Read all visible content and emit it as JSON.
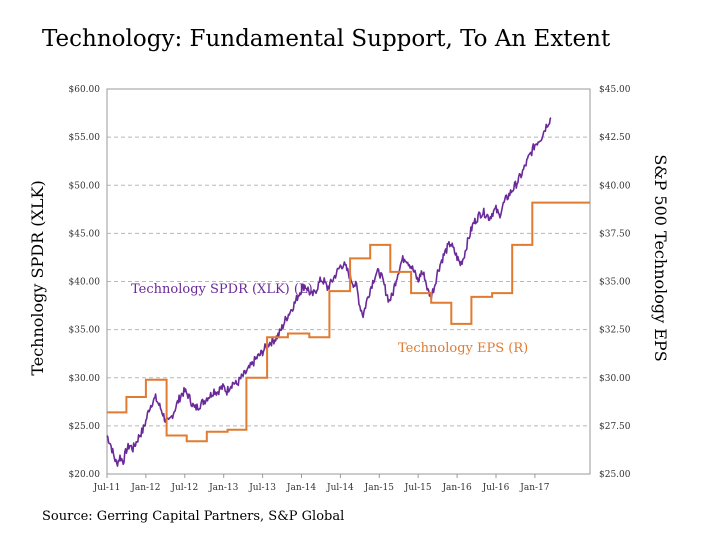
{
  "title": "Technology: Fundamental Support, To An Extent",
  "source": "Source: Gerring Capital Partners, S&P Global",
  "colors": {
    "xlk": "#6a2a9a",
    "eps": "#e07b30",
    "grid": "#b8b8b8"
  },
  "chart_data": {
    "type": "line",
    "title": "Technology: Fundamental Support, To An Extent",
    "ylabel_left": "Technology SPDR (XLK)",
    "ylabel_right": "S&P 500 Technology EPS",
    "x_ticks": [
      "Jul-11",
      "Jan-12",
      "Jul-12",
      "Jan-13",
      "Jul-13",
      "Jan-14",
      "Jul-14",
      "Jan-15",
      "Jul-15",
      "Jan-16",
      "Jul-16",
      "Jan-17"
    ],
    "x_range_months": [
      0,
      74.5
    ],
    "left_axis": {
      "min": 20,
      "max": 60,
      "step": 5,
      "tick_labels": [
        "$20.00",
        "$25.00",
        "$30.00",
        "$35.00",
        "$40.00",
        "$45.00",
        "$50.00",
        "$55.00",
        "$60.00"
      ]
    },
    "right_axis": {
      "min": 25,
      "max": 45,
      "step": 2.5,
      "tick_labels": [
        "$25.00",
        "$27.50",
        "$30.00",
        "$32.50",
        "$35.00",
        "$37.50",
        "$40.00",
        "$42.50",
        "$45.00"
      ]
    },
    "series": [
      {
        "name": "Technology SPDR (XLK) (L)",
        "axis": "left",
        "style": "line",
        "x_unit": "months since Jul-11",
        "points": [
          [
            0,
            24
          ],
          [
            0.5,
            23.2
          ],
          [
            1,
            22
          ],
          [
            1.5,
            21
          ],
          [
            2,
            21.8
          ],
          [
            2.5,
            21.3
          ],
          [
            3,
            22.5
          ],
          [
            3.5,
            23
          ],
          [
            4,
            22.6
          ],
          [
            4.5,
            23.3
          ],
          [
            5,
            24
          ],
          [
            5.5,
            24.5
          ],
          [
            6,
            25.5
          ],
          [
            6.5,
            26.8
          ],
          [
            7,
            27.5
          ],
          [
            7.5,
            27.9
          ],
          [
            8,
            27.2
          ],
          [
            8.5,
            26.5
          ],
          [
            9,
            25.6
          ],
          [
            9.5,
            25.3
          ],
          [
            10,
            26
          ],
          [
            10.5,
            26.8
          ],
          [
            11,
            27.6
          ],
          [
            11.5,
            28.3
          ],
          [
            12,
            28.6
          ],
          [
            12.5,
            28.2
          ],
          [
            13,
            27.5
          ],
          [
            13.5,
            26.8
          ],
          [
            14,
            27
          ],
          [
            14.5,
            27.3
          ],
          [
            15,
            27.6
          ],
          [
            15.5,
            28
          ],
          [
            16,
            28.2
          ],
          [
            16.5,
            28.7
          ],
          [
            17,
            28.5
          ],
          [
            17.5,
            28.9
          ],
          [
            18,
            29
          ],
          [
            18.5,
            28.6
          ],
          [
            19,
            29.2
          ],
          [
            19.5,
            29.5
          ],
          [
            20,
            29.3
          ],
          [
            20.5,
            29.8
          ],
          [
            21,
            30.2
          ],
          [
            21.5,
            30.6
          ],
          [
            22,
            31
          ],
          [
            22.5,
            31.5
          ],
          [
            23,
            32
          ],
          [
            23.5,
            32.3
          ],
          [
            24,
            32.7
          ],
          [
            24.5,
            33.2
          ],
          [
            25,
            33.6
          ],
          [
            25.5,
            33.8
          ],
          [
            26,
            34.1
          ],
          [
            26.5,
            34.5
          ],
          [
            27,
            35.2
          ],
          [
            27.5,
            36
          ],
          [
            28,
            36.6
          ],
          [
            28.5,
            37.2
          ],
          [
            29,
            37.8
          ],
          [
            29.5,
            38.6
          ],
          [
            30,
            39.2
          ],
          [
            30.5,
            39.6
          ],
          [
            31,
            39.2
          ],
          [
            31.5,
            38.5
          ],
          [
            32,
            38.8
          ],
          [
            32.5,
            39.5
          ],
          [
            33,
            40.2
          ],
          [
            33.5,
            40
          ],
          [
            34,
            39.3
          ],
          [
            34.5,
            39.8
          ],
          [
            35,
            40.4
          ],
          [
            35.5,
            41
          ],
          [
            36,
            41.6
          ],
          [
            36.5,
            41.8
          ],
          [
            37,
            41.2
          ],
          [
            37.5,
            40.5
          ],
          [
            38,
            39.8
          ],
          [
            38.5,
            39.5
          ],
          [
            39,
            37.5
          ],
          [
            39.5,
            36.5
          ],
          [
            40,
            37.8
          ],
          [
            40.5,
            39
          ],
          [
            41,
            40
          ],
          [
            41.5,
            40.8
          ],
          [
            42,
            41
          ],
          [
            42.5,
            40.2
          ],
          [
            43,
            39
          ],
          [
            43.5,
            38
          ],
          [
            44,
            38.5
          ],
          [
            44.5,
            40
          ],
          [
            45,
            41.2
          ],
          [
            45.5,
            42.2
          ],
          [
            46,
            42.5
          ],
          [
            46.5,
            42
          ],
          [
            47,
            41.5
          ],
          [
            47.5,
            40.8
          ],
          [
            48,
            40
          ],
          [
            48.5,
            41
          ],
          [
            49,
            40.5
          ],
          [
            49.5,
            39
          ],
          [
            50,
            38.5
          ],
          [
            50.5,
            39.5
          ],
          [
            51,
            41
          ],
          [
            51.5,
            42
          ],
          [
            52,
            42.8
          ],
          [
            52.5,
            43.5
          ],
          [
            53,
            44
          ],
          [
            53.5,
            43.2
          ],
          [
            54,
            42.5
          ],
          [
            54.5,
            41.8
          ],
          [
            55,
            42.5
          ],
          [
            55.5,
            43.8
          ],
          [
            56,
            45
          ],
          [
            56.5,
            46
          ],
          [
            57,
            46.5
          ],
          [
            57.5,
            47
          ],
          [
            58,
            47.2
          ],
          [
            58.5,
            47
          ],
          [
            59,
            46.6
          ],
          [
            59.5,
            47.2
          ],
          [
            60,
            47.5
          ],
          [
            60.5,
            46.8
          ],
          [
            61,
            47.8
          ],
          [
            61.5,
            48.5
          ],
          [
            62,
            49
          ],
          [
            62.5,
            49.5
          ],
          [
            63,
            50
          ],
          [
            63.5,
            50.6
          ],
          [
            64,
            51.2
          ],
          [
            64.5,
            52
          ],
          [
            65,
            52.8
          ],
          [
            65.5,
            53.5
          ],
          [
            66,
            54.2
          ],
          [
            66.5,
            54.6
          ],
          [
            67,
            55
          ],
          [
            67.5,
            55.8
          ],
          [
            68,
            56.5
          ],
          [
            68.5,
            57
          ]
        ]
      },
      {
        "name": "Technology EPS (R)",
        "axis": "right",
        "style": "step",
        "x_unit": "months since Jul-11",
        "steps": [
          [
            0,
            28.2
          ],
          [
            3,
            29
          ],
          [
            6,
            29.9
          ],
          [
            9.2,
            27.0
          ],
          [
            12.3,
            26.7
          ],
          [
            15.4,
            27.2
          ],
          [
            18.6,
            27.3
          ],
          [
            21.5,
            30.0
          ],
          [
            24.7,
            32.1
          ],
          [
            27.9,
            32.3
          ],
          [
            31.2,
            32.1
          ],
          [
            34.3,
            34.5
          ],
          [
            37.5,
            36.2
          ],
          [
            40.6,
            36.9
          ],
          [
            43.7,
            35.5
          ],
          [
            46.9,
            34.4
          ],
          [
            50,
            33.9
          ],
          [
            53.1,
            32.8
          ],
          [
            56.2,
            34.2
          ],
          [
            59.4,
            34.4
          ],
          [
            62.5,
            36.9
          ],
          [
            65.6,
            39.1
          ],
          [
            74.5,
            39.1
          ]
        ]
      }
    ]
  }
}
